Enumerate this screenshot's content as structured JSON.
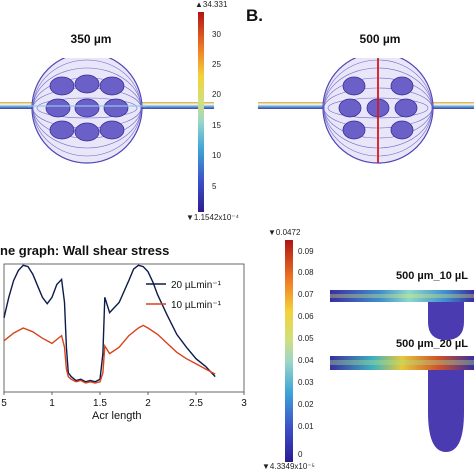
{
  "panel_b": {
    "letter": "B."
  },
  "sims": {
    "left": {
      "label": "350 µm"
    },
    "right": {
      "label": "500 µm"
    }
  },
  "colorbar_top": {
    "max_label": "▲34.331",
    "ticks": [
      "30",
      "25",
      "20",
      "15",
      "10",
      "5"
    ],
    "min_label": "▼1.1542x10⁻⁴"
  },
  "colorbar_bottom": {
    "max_label": "▼0.0472",
    "ticks": [
      "0.09",
      "0.08",
      "0.07",
      "0.06",
      "0.05",
      "0.04",
      "0.03",
      "0.02",
      "0.01",
      "0"
    ],
    "min_label": "▼4.3349x10⁻⁵"
  },
  "channels": {
    "top_label": "500 µm_10 µL",
    "bottom_label": "500 µm_20 µL"
  },
  "colors": {
    "series_20": "#0d1b4a",
    "series_10": "#d9431a",
    "geometry_purple": "#4f46b8"
  },
  "chart_data": {
    "type": "line",
    "title": "ne graph: Wall shear stress",
    "xlabel": "Acr length",
    "ylabel": "",
    "xlim": [
      0.5,
      3
    ],
    "ylim": [
      0,
      1
    ],
    "x_ticks": [
      "5",
      "1",
      "1.5",
      "2",
      "2.5",
      "3"
    ],
    "series": [
      {
        "name": "20 µLmin⁻¹",
        "x": [
          0.5,
          0.55,
          0.6,
          0.65,
          0.7,
          0.75,
          0.8,
          0.85,
          0.9,
          0.95,
          1.0,
          1.05,
          1.1,
          1.13,
          1.15,
          1.17,
          1.2,
          1.25,
          1.3,
          1.35,
          1.4,
          1.45,
          1.5,
          1.53,
          1.55,
          1.6,
          1.7,
          1.8,
          1.85,
          1.9,
          1.95,
          2.0,
          2.05,
          2.1,
          2.2,
          2.3,
          2.4,
          2.5,
          2.6,
          2.7
        ],
        "y": [
          0.58,
          0.74,
          0.87,
          0.95,
          0.99,
          0.98,
          0.92,
          0.83,
          0.74,
          0.69,
          0.74,
          0.84,
          0.88,
          0.7,
          0.35,
          0.15,
          0.12,
          0.09,
          0.1,
          0.08,
          0.09,
          0.08,
          0.1,
          0.3,
          0.74,
          0.62,
          0.7,
          0.87,
          0.96,
          0.99,
          0.98,
          0.94,
          0.86,
          0.76,
          0.6,
          0.45,
          0.35,
          0.26,
          0.2,
          0.12
        ]
      },
      {
        "name": "10 µLmin⁻¹",
        "x": [
          0.5,
          0.6,
          0.7,
          0.8,
          0.9,
          1.0,
          1.05,
          1.1,
          1.13,
          1.15,
          1.17,
          1.2,
          1.25,
          1.3,
          1.35,
          1.4,
          1.45,
          1.5,
          1.53,
          1.55,
          1.6,
          1.7,
          1.8,
          1.9,
          1.95,
          2.0,
          2.1,
          2.2,
          2.3,
          2.4,
          2.5,
          2.6,
          2.7
        ],
        "y": [
          0.4,
          0.46,
          0.5,
          0.47,
          0.42,
          0.38,
          0.41,
          0.44,
          0.35,
          0.18,
          0.12,
          0.1,
          0.08,
          0.09,
          0.07,
          0.08,
          0.07,
          0.08,
          0.15,
          0.36,
          0.3,
          0.35,
          0.44,
          0.5,
          0.52,
          0.5,
          0.45,
          0.38,
          0.31,
          0.26,
          0.22,
          0.18,
          0.14
        ]
      }
    ]
  }
}
